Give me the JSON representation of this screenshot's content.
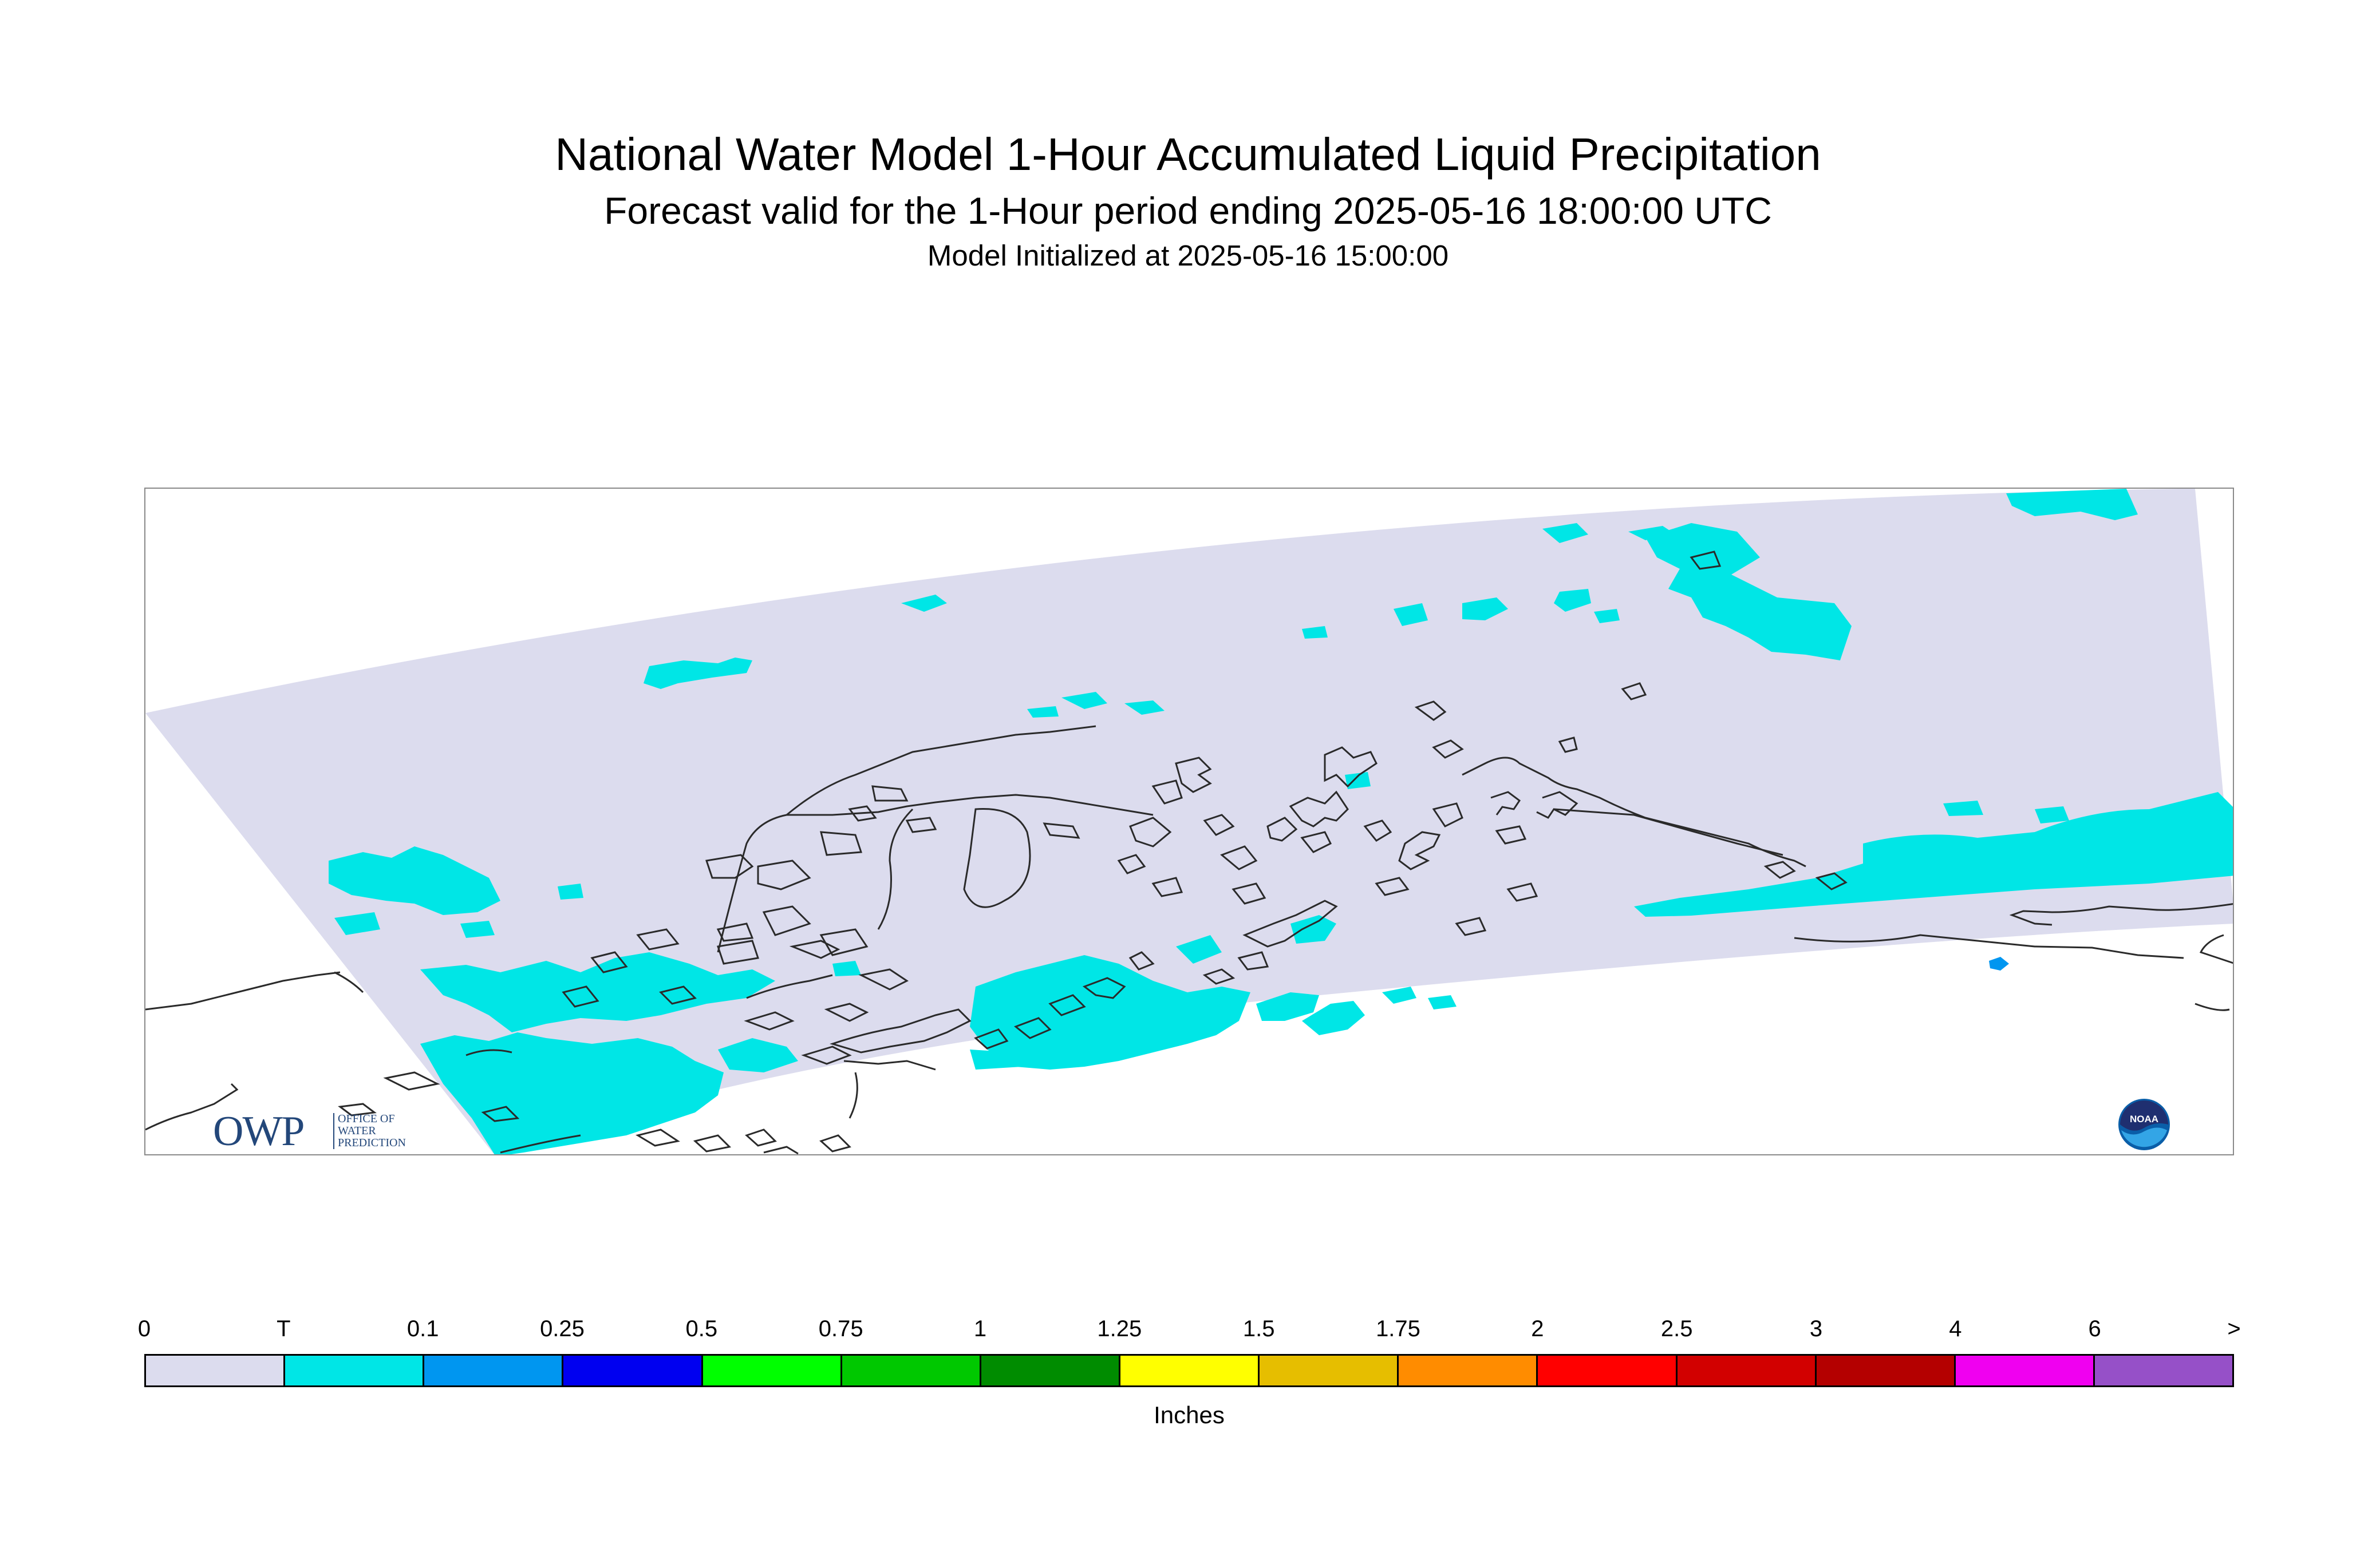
{
  "header": {
    "title": "National Water Model 1-Hour Accumulated Liquid Precipitation",
    "subtitle": "Forecast valid for the 1-Hour period ending 2025-05-16 18:00:00 UTC",
    "initialized": "Model Initialized at 2025-05-16 15:00:00"
  },
  "map": {
    "background_color": "#dcdcee",
    "precip_color": "#00e6e6",
    "precip_heavy_color": "#0096f0",
    "coastline_color": "#2a2a2a"
  },
  "logos": {
    "owp": {
      "letters": "OWP",
      "text": "OFFICE OF\nWATER\nPREDICTION",
      "color": "#23477a"
    },
    "noaa": {
      "text": "NOAA",
      "icon": "noaa-logo-icon"
    }
  },
  "legend": {
    "units": "Inches",
    "ticks": [
      "0",
      "T",
      "0.1",
      "0.25",
      "0.5",
      "0.75",
      "1",
      "1.25",
      "1.5",
      "1.75",
      "2",
      "2.5",
      "3",
      "4",
      "6",
      ">"
    ],
    "colors": [
      "#dcdcee",
      "#00e6e6",
      "#0096f0",
      "#0000f0",
      "#00ff00",
      "#00c800",
      "#008c00",
      "#ffff00",
      "#e6be00",
      "#ff8c00",
      "#ff0000",
      "#d20000",
      "#b40000",
      "#f000f0",
      "#9650c8"
    ]
  }
}
